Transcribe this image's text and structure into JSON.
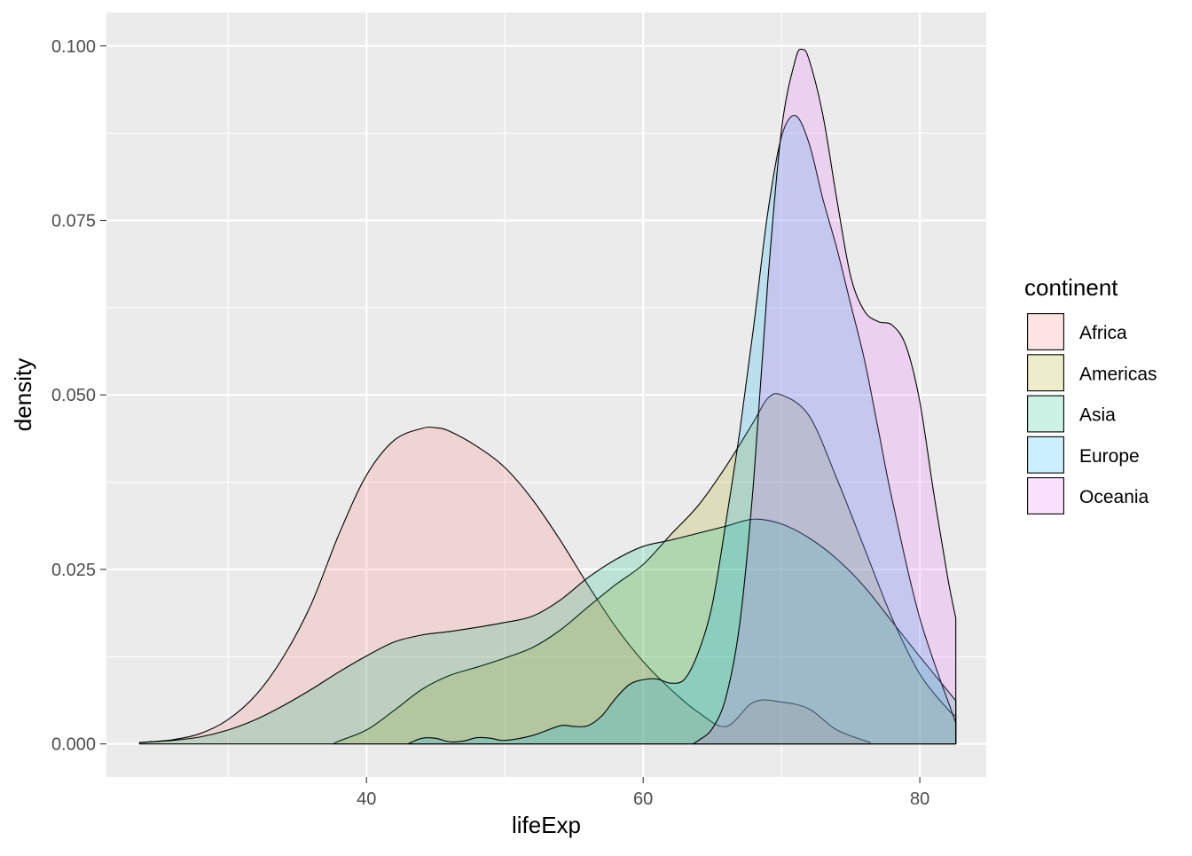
{
  "chart_data": {
    "type": "area",
    "subtype": "density",
    "xlabel": "lifeExp",
    "ylabel": "density",
    "xlim": [
      21.2,
      84.8
    ],
    "ylim": [
      -0.00475,
      0.1048
    ],
    "x_ticks": [
      40,
      60,
      80
    ],
    "x_tick_labels": [
      "40",
      "60",
      "80"
    ],
    "x_minor_ticks": [
      30,
      50,
      70
    ],
    "y_ticks": [
      0,
      0.025,
      0.05,
      0.075,
      0.1
    ],
    "y_tick_labels": [
      "0.000",
      "0.025",
      "0.050",
      "0.075",
      "0.100"
    ],
    "grid": true,
    "fill_alpha": 0.2,
    "legend": {
      "title": "continent",
      "placement": "right"
    },
    "series": [
      {
        "name": "Africa",
        "color": "#F8766D",
        "x": [
          23.6,
          26,
          28,
          30,
          32,
          34,
          36,
          38,
          40,
          42,
          44,
          45,
          46,
          48,
          50,
          52,
          54,
          56,
          58,
          60,
          62,
          64,
          66,
          68,
          70,
          72,
          74,
          76.4
        ],
        "y": [
          0.0002,
          0.0006,
          0.0015,
          0.0035,
          0.007,
          0.0125,
          0.02,
          0.03,
          0.0385,
          0.0435,
          0.0452,
          0.0453,
          0.0448,
          0.0426,
          0.0396,
          0.035,
          0.0292,
          0.0228,
          0.0168,
          0.0118,
          0.0078,
          0.0045,
          0.0025,
          0.006,
          0.006,
          0.005,
          0.002,
          0.0002
        ]
      },
      {
        "name": "Americas",
        "color": "#A3A500",
        "x": [
          37.6,
          38,
          40,
          42,
          44,
          46,
          48,
          50,
          52,
          54,
          56,
          58,
          60,
          62,
          64,
          66,
          68,
          69,
          70,
          72,
          74,
          76,
          78,
          80,
          82,
          82.6
        ],
        "y": [
          0.0,
          0.0004,
          0.002,
          0.0048,
          0.0078,
          0.0098,
          0.011,
          0.0123,
          0.0138,
          0.0163,
          0.0196,
          0.0228,
          0.0257,
          0.03,
          0.0342,
          0.0398,
          0.0462,
          0.0495,
          0.05,
          0.047,
          0.038,
          0.028,
          0.018,
          0.01,
          0.005,
          0.004
        ]
      },
      {
        "name": "Asia",
        "color": "#00BF7D",
        "x": [
          23.6,
          26,
          28,
          30,
          32,
          34,
          36,
          38,
          40,
          42,
          44,
          46,
          48,
          50,
          52,
          54,
          56,
          58,
          60,
          62,
          64,
          66,
          68,
          70,
          72,
          74,
          76,
          78,
          80,
          82.6
        ],
        "y": [
          0.0002,
          0.0005,
          0.001,
          0.002,
          0.0035,
          0.0055,
          0.0078,
          0.0103,
          0.0126,
          0.0146,
          0.0156,
          0.0161,
          0.0167,
          0.0174,
          0.0183,
          0.0206,
          0.0238,
          0.0264,
          0.0283,
          0.0292,
          0.0302,
          0.0312,
          0.0322,
          0.0315,
          0.0295,
          0.0265,
          0.0225,
          0.0175,
          0.0125,
          0.0062
        ]
      },
      {
        "name": "Europe",
        "color": "#00B0F6",
        "x": [
          43,
          44,
          45,
          46,
          47,
          48,
          49,
          50,
          52,
          54,
          55,
          56,
          57,
          58,
          59,
          60,
          61,
          62,
          63,
          64,
          65,
          66,
          67,
          68,
          69,
          70,
          71,
          72,
          73,
          74,
          75,
          76,
          77,
          78,
          80,
          82.6
        ],
        "y": [
          0.0,
          0.0008,
          0.0008,
          0.0003,
          0.0004,
          0.0009,
          0.0008,
          0.0005,
          0.0012,
          0.0026,
          0.0025,
          0.0026,
          0.004,
          0.0065,
          0.0085,
          0.0092,
          0.0093,
          0.0087,
          0.0093,
          0.0132,
          0.02,
          0.032,
          0.045,
          0.06,
          0.076,
          0.087,
          0.09,
          0.086,
          0.078,
          0.071,
          0.063,
          0.055,
          0.045,
          0.035,
          0.018,
          0.003
        ]
      },
      {
        "name": "Oceania",
        "color": "#E76BF3",
        "x": [
          63.6,
          64,
          65,
          66,
          67,
          68,
          69,
          70,
          71,
          71.5,
          72,
          73,
          74,
          75,
          76,
          77,
          78,
          79,
          80,
          81,
          82,
          82.6
        ],
        "y": [
          0.0,
          0.0005,
          0.0022,
          0.0068,
          0.0175,
          0.038,
          0.066,
          0.088,
          0.098,
          0.0995,
          0.098,
          0.09,
          0.078,
          0.067,
          0.062,
          0.0605,
          0.06,
          0.057,
          0.049,
          0.036,
          0.024,
          0.018
        ]
      }
    ]
  }
}
